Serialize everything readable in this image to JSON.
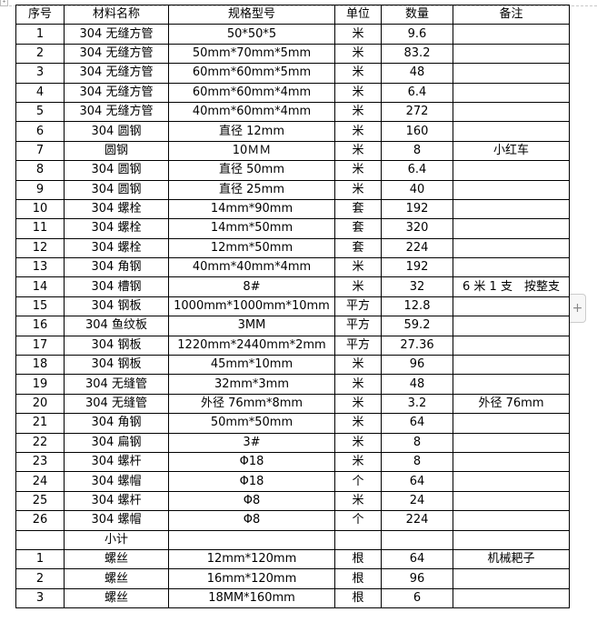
{
  "headers": [
    "序号",
    "材料名称",
    "规格型号",
    "单位",
    "数量",
    "备注"
  ],
  "rows": [
    [
      "1",
      "304 无缝方管",
      "50*50*5",
      "米",
      "9.6",
      ""
    ],
    [
      "2",
      "304 无缝方管",
      "50mm*70mm*5mm",
      "米",
      "83.2",
      ""
    ],
    [
      "3",
      "304 无缝方管",
      "60mm*60mm*5mm",
      "米",
      "48",
      ""
    ],
    [
      "4",
      "304 无缝方管",
      "60mm*60mm*4mm",
      "米",
      "6.4",
      ""
    ],
    [
      "5",
      "304 无缝方管",
      "40mm*60mm*4mm",
      "米",
      "272",
      ""
    ],
    [
      "6",
      "304 圆钢",
      "直径 12mm",
      "米",
      "160",
      ""
    ],
    [
      "7",
      "圆钢",
      "10ＭＭ",
      "米",
      "8",
      "小红车"
    ],
    [
      "8",
      "304 圆钢",
      "直径 50mm",
      "米",
      "6.4",
      ""
    ],
    [
      "9",
      "304 圆钢",
      "直径 25mm",
      "米",
      "40",
      ""
    ],
    [
      "10",
      "304 螺栓",
      "14mm*90mm",
      "套",
      "192",
      ""
    ],
    [
      "11",
      "304 螺栓",
      "14mm*50mm",
      "套",
      "320",
      ""
    ],
    [
      "12",
      "304 螺栓",
      "12mm*50mm",
      "套",
      "224",
      ""
    ],
    [
      "13",
      "304 角钢",
      "40mm*40mm*4mm",
      "米",
      "192",
      ""
    ],
    [
      "14",
      "304 槽钢",
      "8#",
      "米",
      "32",
      "6 米 1 支　按整支"
    ],
    [
      "15",
      "304 钢板",
      "1000mm*1000mm*10mm",
      "平方",
      "12.8",
      ""
    ],
    [
      "16",
      "304 鱼纹板",
      "3MM",
      "平方",
      "59.2",
      ""
    ],
    [
      "17",
      "304 钢板",
      "1220mm*2440mm*2mm",
      "平方",
      "27.36",
      ""
    ],
    [
      "18",
      "304 钢板",
      "45mm*10mm",
      "米",
      "96",
      ""
    ],
    [
      "19",
      "304 无缝管",
      "32mm*3mm",
      "米",
      "48",
      ""
    ],
    [
      "20",
      "304 无缝管",
      "外径 76mm*8mm",
      "米",
      "3.2",
      "外径 76mm"
    ],
    [
      "21",
      "304 角钢",
      "50mm*50mm",
      "米",
      "64",
      ""
    ],
    [
      "22",
      "304 扁钢",
      "3#",
      "米",
      "8",
      ""
    ],
    [
      "23",
      "304 螺杆",
      "Φ18",
      "米",
      "8",
      ""
    ],
    [
      "24",
      "304 螺帽",
      "Φ18",
      "个",
      "64",
      ""
    ],
    [
      "25",
      "304 螺杆",
      "Φ8",
      "米",
      "24",
      ""
    ],
    [
      "26",
      "304 螺帽",
      "Φ8",
      "个",
      "224",
      ""
    ],
    [
      "",
      "小计",
      "",
      "",
      "",
      ""
    ],
    [
      "1",
      "螺丝",
      "12mm*120mm",
      "根",
      "64",
      "机械耙子"
    ],
    [
      "2",
      "螺丝",
      "16mm*120mm",
      "根",
      "96",
      ""
    ],
    [
      "3",
      "螺丝",
      "18MM*160mm",
      "根",
      "6",
      ""
    ]
  ],
  "add_button": "+"
}
